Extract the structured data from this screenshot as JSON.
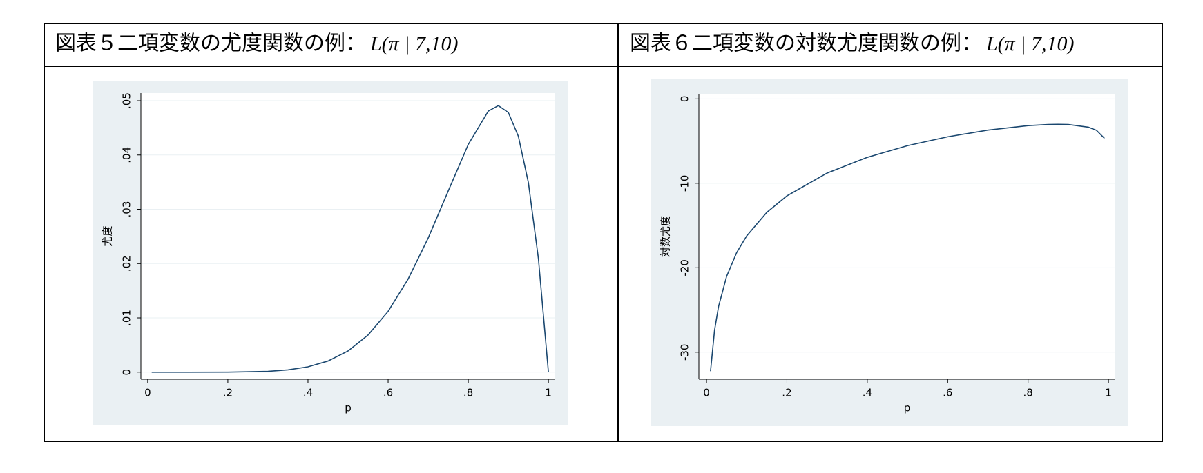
{
  "chart_data": [
    {
      "type": "line",
      "title": "図表５二項変数の尤度関数の例：",
      "formula": "L(π | 7,10)",
      "x_label": "p",
      "y_label": "尤度",
      "x": [
        0.01,
        0.1,
        0.2,
        0.3,
        0.35,
        0.4,
        0.45,
        0.5,
        0.55,
        0.6,
        0.65,
        0.7,
        0.75,
        0.8,
        0.85,
        0.875,
        0.9,
        0.925,
        0.95,
        0.975,
        1
      ],
      "series": [
        {
          "color": "#1a476f",
          "values": [
            0,
            0,
            1e-05,
            0.000153,
            0.000418,
            0.000983,
            0.002055,
            0.003906,
            0.006851,
            0.011197,
            0.017158,
            0.024706,
            0.033371,
            0.041943,
            0.048087,
            0.049087,
            0.04783,
            0.043456,
            0.034917,
            0.02094,
            0
          ]
        }
      ],
      "xlim": [
        -0.017,
        1.017
      ],
      "ylim": [
        -0.0013,
        0.0514
      ],
      "xticks": [
        0,
        {
          "value": 0.2,
          "label": ".2"
        },
        {
          "value": 0.4,
          "label": ".4"
        },
        {
          "value": 0.6,
          "label": ".6"
        },
        {
          "value": 0.8,
          "label": ".8"
        },
        1
      ],
      "yticks": [
        0,
        {
          "value": 0.01,
          "label": ".01"
        },
        {
          "value": 0.02,
          "label": ".02"
        },
        {
          "value": 0.03,
          "label": ".03"
        },
        {
          "value": 0.04,
          "label": ".04"
        },
        {
          "value": 0.05,
          "label": ".05"
        }
      ],
      "grid": true
    },
    {
      "type": "line",
      "title": "図表６二項変数の対数尤度関数の例：",
      "formula": "L(π | 7,10)",
      "x_label": "p",
      "y_label": "対数尤度",
      "x": [
        0.01,
        0.02,
        0.03,
        0.05,
        0.075,
        0.1,
        0.15,
        0.2,
        0.3,
        0.4,
        0.5,
        0.6,
        0.7,
        0.8,
        0.85,
        0.875,
        0.9,
        0.95,
        0.97,
        0.99
      ],
      "series": [
        {
          "color": "#1a476f",
          "values": [
            -32.246,
            -27.404,
            -24.576,
            -21.021,
            -18.21,
            -16.223,
            -13.442,
            -11.489,
            -8.785,
            -6.925,
            -5.545,
            -4.492,
            -3.701,
            -3.171,
            -3.035,
            -3.014,
            -3.04,
            -3.355,
            -3.72,
            -4.675
          ]
        }
      ],
      "xlim": [
        -0.019,
        1.017
      ],
      "ylim": [
        -33.2,
        0.6
      ],
      "xticks": [
        0,
        {
          "value": 0.2,
          "label": ".2"
        },
        {
          "value": 0.4,
          "label": ".4"
        },
        {
          "value": 0.6,
          "label": ".6"
        },
        {
          "value": 0.8,
          "label": ".8"
        },
        1
      ],
      "yticks": [
        0,
        -10,
        -20,
        -30
      ],
      "grid": true
    }
  ]
}
